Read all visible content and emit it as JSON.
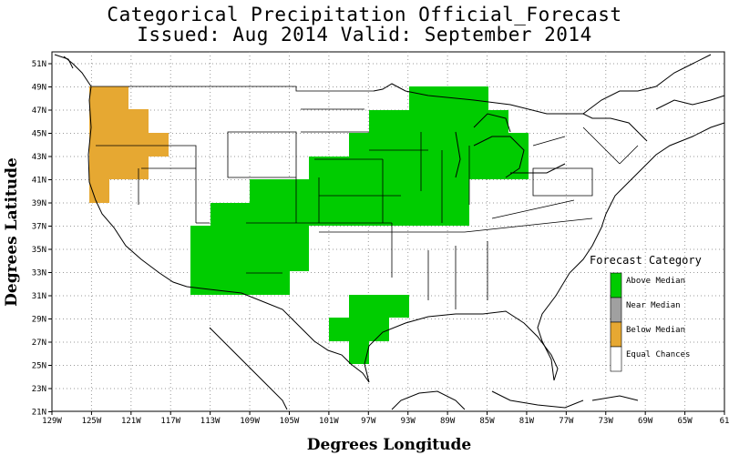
{
  "title_line1": "Categorical Precipitation Official_Forecast",
  "title_line2": "Issued: Aug 2014 Valid: September 2014",
  "x_axis_label": "Degrees Longitude",
  "y_axis_label": "Degrees Latitude",
  "x_ticks": [
    "129W",
    "125W",
    "121W",
    "117W",
    "113W",
    "109W",
    "105W",
    "101W",
    "97W",
    "93W",
    "89W",
    "85W",
    "81W",
    "77W",
    "73W",
    "69W",
    "65W",
    "61"
  ],
  "y_ticks": [
    "51N",
    "49N",
    "47N",
    "45N",
    "43N",
    "41N",
    "39N",
    "37N",
    "35N",
    "33N",
    "31N",
    "29N",
    "27N",
    "25N",
    "23N",
    "21N"
  ],
  "legend": {
    "title": "Forecast Category",
    "items": [
      {
        "label": "Above Median",
        "color": "#00cc00"
      },
      {
        "label": "Near Median",
        "color": "#a0a0a0"
      },
      {
        "label": "Below Median",
        "color": "#e6a832"
      },
      {
        "label": "Equal Chances",
        "color": "#ffffff"
      }
    ]
  },
  "regions": {
    "above_median_color": "#00cc00",
    "below_median_color": "#e6a832"
  }
}
